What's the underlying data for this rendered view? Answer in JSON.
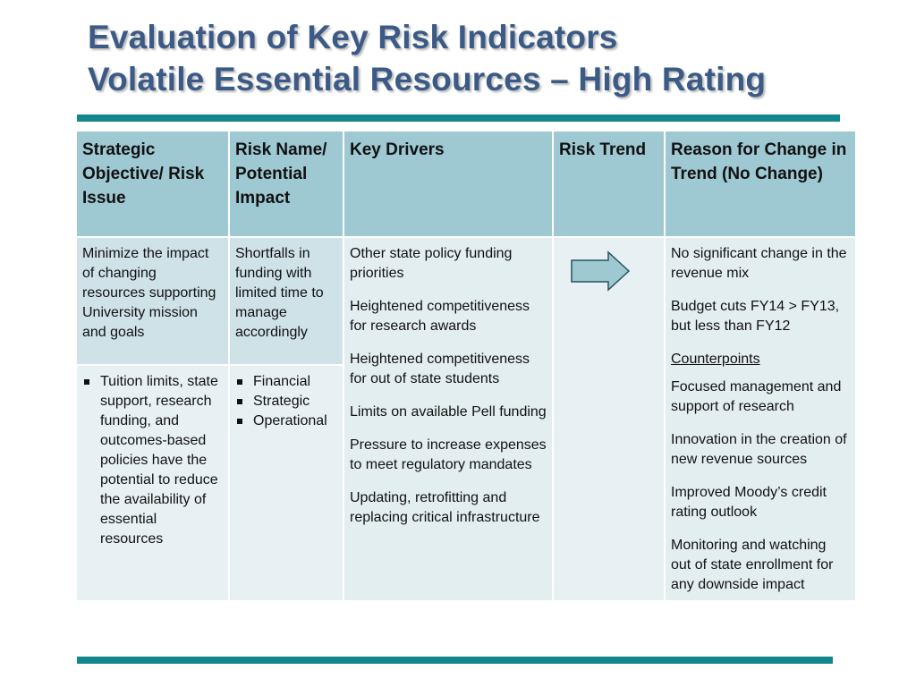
{
  "title": {
    "line1": "Evaluation of Key Risk Indicators",
    "line2": "Volatile Essential Resources – High Rating"
  },
  "table": {
    "headers": [
      "Strategic Objective/ Risk Issue",
      "Risk Name/ Potential Impact",
      "Key Drivers",
      "Risk Trend",
      "Reason for Change in Trend (No Change)"
    ],
    "row1": {
      "objective": "Minimize the impact of changing resources supporting University mission and goals",
      "risk_name": "Shortfalls in funding with limited time to manage accordingly"
    },
    "row2": {
      "risk_issue_bullets": [
        "Tuition limits, state support, research funding, and outcomes-based policies have the potential to reduce the availability of essential resources"
      ],
      "potential_impact_bullets": [
        "Financial",
        "Strategic",
        "Operational"
      ]
    },
    "key_drivers": [
      "Other state policy funding priorities",
      "Heightened competitiveness for research awards",
      "Heightened competitiveness for out of state students",
      "Limits on available Pell funding",
      "Pressure to increase expenses to meet regulatory mandates",
      "Updating, retrofitting and replacing critical infrastructure"
    ],
    "risk_trend_icon": "right-arrow-icon",
    "reasons": {
      "items": [
        "No significant change in the revenue mix",
        "Budget cuts FY14 > FY13, but less than FY12"
      ],
      "counterpoints_label": "Counterpoints",
      "counterpoints": [
        "Focused management and support of research",
        "Innovation in the creation of new revenue sources",
        "Improved Moody’s credit rating outlook",
        "Monitoring and watching out of state enrollment for any downside impact"
      ]
    }
  },
  "colors": {
    "title": "#3b5a86",
    "bar": "#13878c",
    "header_bg": "#9ec8d2",
    "row1_bg": "#cfe2e8",
    "row2_bg": "#e7f1f4",
    "arrow_fill": "#9ec8d2"
  }
}
